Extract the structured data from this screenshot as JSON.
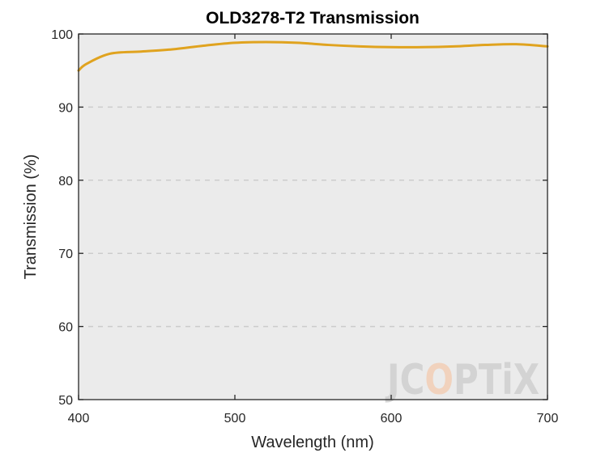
{
  "chart_data": {
    "type": "line",
    "title": "OLD3278-T2 Transmission",
    "xlabel": "Wavelength (nm)",
    "ylabel": "Transmission (%)",
    "xlim": [
      400,
      700
    ],
    "ylim": [
      50,
      100
    ],
    "xticks": [
      400,
      500,
      600,
      700
    ],
    "yticks": [
      50,
      60,
      70,
      80,
      90,
      100
    ],
    "grid": "y-dashed",
    "legend": "none",
    "colors": {
      "plot_background": "#ebebeb",
      "series": "#e0a31f",
      "grid": "#cccccc"
    },
    "series": [
      {
        "x": [
          400,
          405,
          420,
          440,
          460,
          480,
          500,
          520,
          540,
          560,
          580,
          600,
          620,
          640,
          660,
          680,
          700
        ],
        "values": [
          95.0,
          95.9,
          97.3,
          97.6,
          97.9,
          98.4,
          98.8,
          98.9,
          98.8,
          98.5,
          98.3,
          98.2,
          98.2,
          98.3,
          98.5,
          98.6,
          98.3
        ]
      }
    ]
  },
  "watermark": {
    "text": "JCOPTIX",
    "letters": [
      "J",
      "C",
      "O",
      "P",
      "T",
      "i",
      "X"
    ],
    "color": "#d3d3d3",
    "accent_color": "#f1d2bd"
  }
}
